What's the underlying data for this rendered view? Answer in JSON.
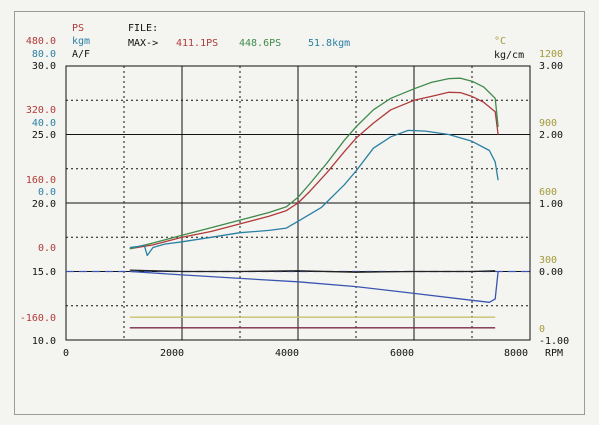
{
  "header": {
    "file_label": "FILE:",
    "max_label": "MAX->",
    "max_ps": "411.1PS",
    "max_ps2": "448.6PS",
    "max_torque": "51.8kgm"
  },
  "left_axes": {
    "ps": {
      "unit": "PS",
      "color": "#b03a3a",
      "ticks": [
        "480.0",
        "320.0",
        "160.0",
        "0.0",
        "-160.0"
      ]
    },
    "kgm": {
      "unit": "kgm",
      "color": "#2a7fa3",
      "ticks": [
        "80.0",
        "40.0",
        "0.0"
      ]
    },
    "af": {
      "unit": "A/F",
      "color": "#111111",
      "ticks": [
        "30.0",
        "25.0",
        "20.0",
        "15.0",
        "10.0"
      ]
    }
  },
  "right_axes": {
    "temp": {
      "unit": "°C",
      "color": "#a39a3a",
      "ticks": [
        "1200",
        "900",
        "600",
        "300",
        "0"
      ]
    },
    "boost": {
      "unit": "kg/cm",
      "color": "#111111",
      "ticks": [
        "3.00",
        "2.00",
        "1.00",
        "0.00",
        "-1.00"
      ]
    }
  },
  "x_axis": {
    "unit": "RPM",
    "ticks": [
      "0",
      "2000",
      "4000",
      "6000",
      "8000"
    ]
  },
  "colors": {
    "power_red": "#b03a3a",
    "power_green": "#3f8a4a",
    "torque": "#2a7fa3",
    "af_dashed": "#3a55b0",
    "boost": "#222222",
    "blue_line": "#3a55b0",
    "yellow_line": "#c8c26a",
    "purple_line": "#7a2a4a"
  },
  "chart_data": {
    "type": "line",
    "x_label": "RPM",
    "xlim": [
      0,
      8000
    ],
    "series": [
      {
        "name": "411.1PS",
        "axis": "PS",
        "x": [
          1100,
          1500,
          2000,
          2500,
          3000,
          3500,
          3800,
          4000,
          4200,
          4500,
          4800,
          5000,
          5300,
          5600,
          6000,
          6300,
          6600,
          6800,
          7000,
          7200,
          7400,
          7450
        ],
        "y": [
          0,
          10,
          30,
          45,
          65,
          85,
          100,
          120,
          150,
          200,
          255,
          290,
          330,
          365,
          390,
          400,
          411,
          410,
          400,
          385,
          360,
          300
        ]
      },
      {
        "name": "448.6PS",
        "axis": "PS",
        "x": [
          1100,
          1500,
          2000,
          2500,
          3000,
          3500,
          3800,
          4000,
          4200,
          4500,
          4800,
          5000,
          5300,
          5600,
          6000,
          6300,
          6600,
          6800,
          7000,
          7200,
          7400,
          7450
        ],
        "y": [
          0,
          15,
          35,
          55,
          75,
          95,
          110,
          135,
          170,
          225,
          285,
          320,
          365,
          395,
          420,
          437,
          447,
          448,
          440,
          425,
          395,
          320
        ]
      },
      {
        "name": "51.8kgm",
        "axis": "kgm",
        "x": [
          1100,
          1250,
          1350,
          1400,
          1500,
          1700,
          2000,
          2500,
          3000,
          3500,
          3800,
          4000,
          4400,
          4800,
          5000,
          5300,
          5600,
          5900,
          6200,
          6600,
          7000,
          7300,
          7400,
          7450
        ],
        "y": [
          0.5,
          1,
          1.5,
          -3,
          0.5,
          2,
          3,
          5,
          7,
          8,
          9,
          12,
          18,
          28,
          34,
          44,
          49,
          51.8,
          51.5,
          50,
          47,
          43,
          38,
          30
        ]
      },
      {
        "name": "A/F",
        "axis": "A/F",
        "x": [
          1100,
          2000,
          3000,
          4000,
          5000,
          6000,
          7000,
          7400
        ],
        "y": [
          15.1,
          15.0,
          15.0,
          15.05,
          14.95,
          15.0,
          15.0,
          15.05
        ]
      },
      {
        "name": "boost",
        "axis": "kg/cm",
        "x": [
          1100,
          2000,
          3000,
          4000,
          5000,
          6000,
          7000,
          7300,
          7400,
          7450
        ],
        "y": [
          0.0,
          -0.05,
          -0.1,
          -0.15,
          -0.22,
          -0.32,
          -0.42,
          -0.45,
          -0.4,
          0.0
        ]
      },
      {
        "name": "temp",
        "axis": "°C",
        "x": [
          1100,
          7400
        ],
        "y": [
          100,
          100
        ]
      },
      {
        "name": "purple",
        "axis": "PS",
        "x": [
          1100,
          7400
        ],
        "y": [
          -208,
          -208
        ]
      }
    ]
  }
}
